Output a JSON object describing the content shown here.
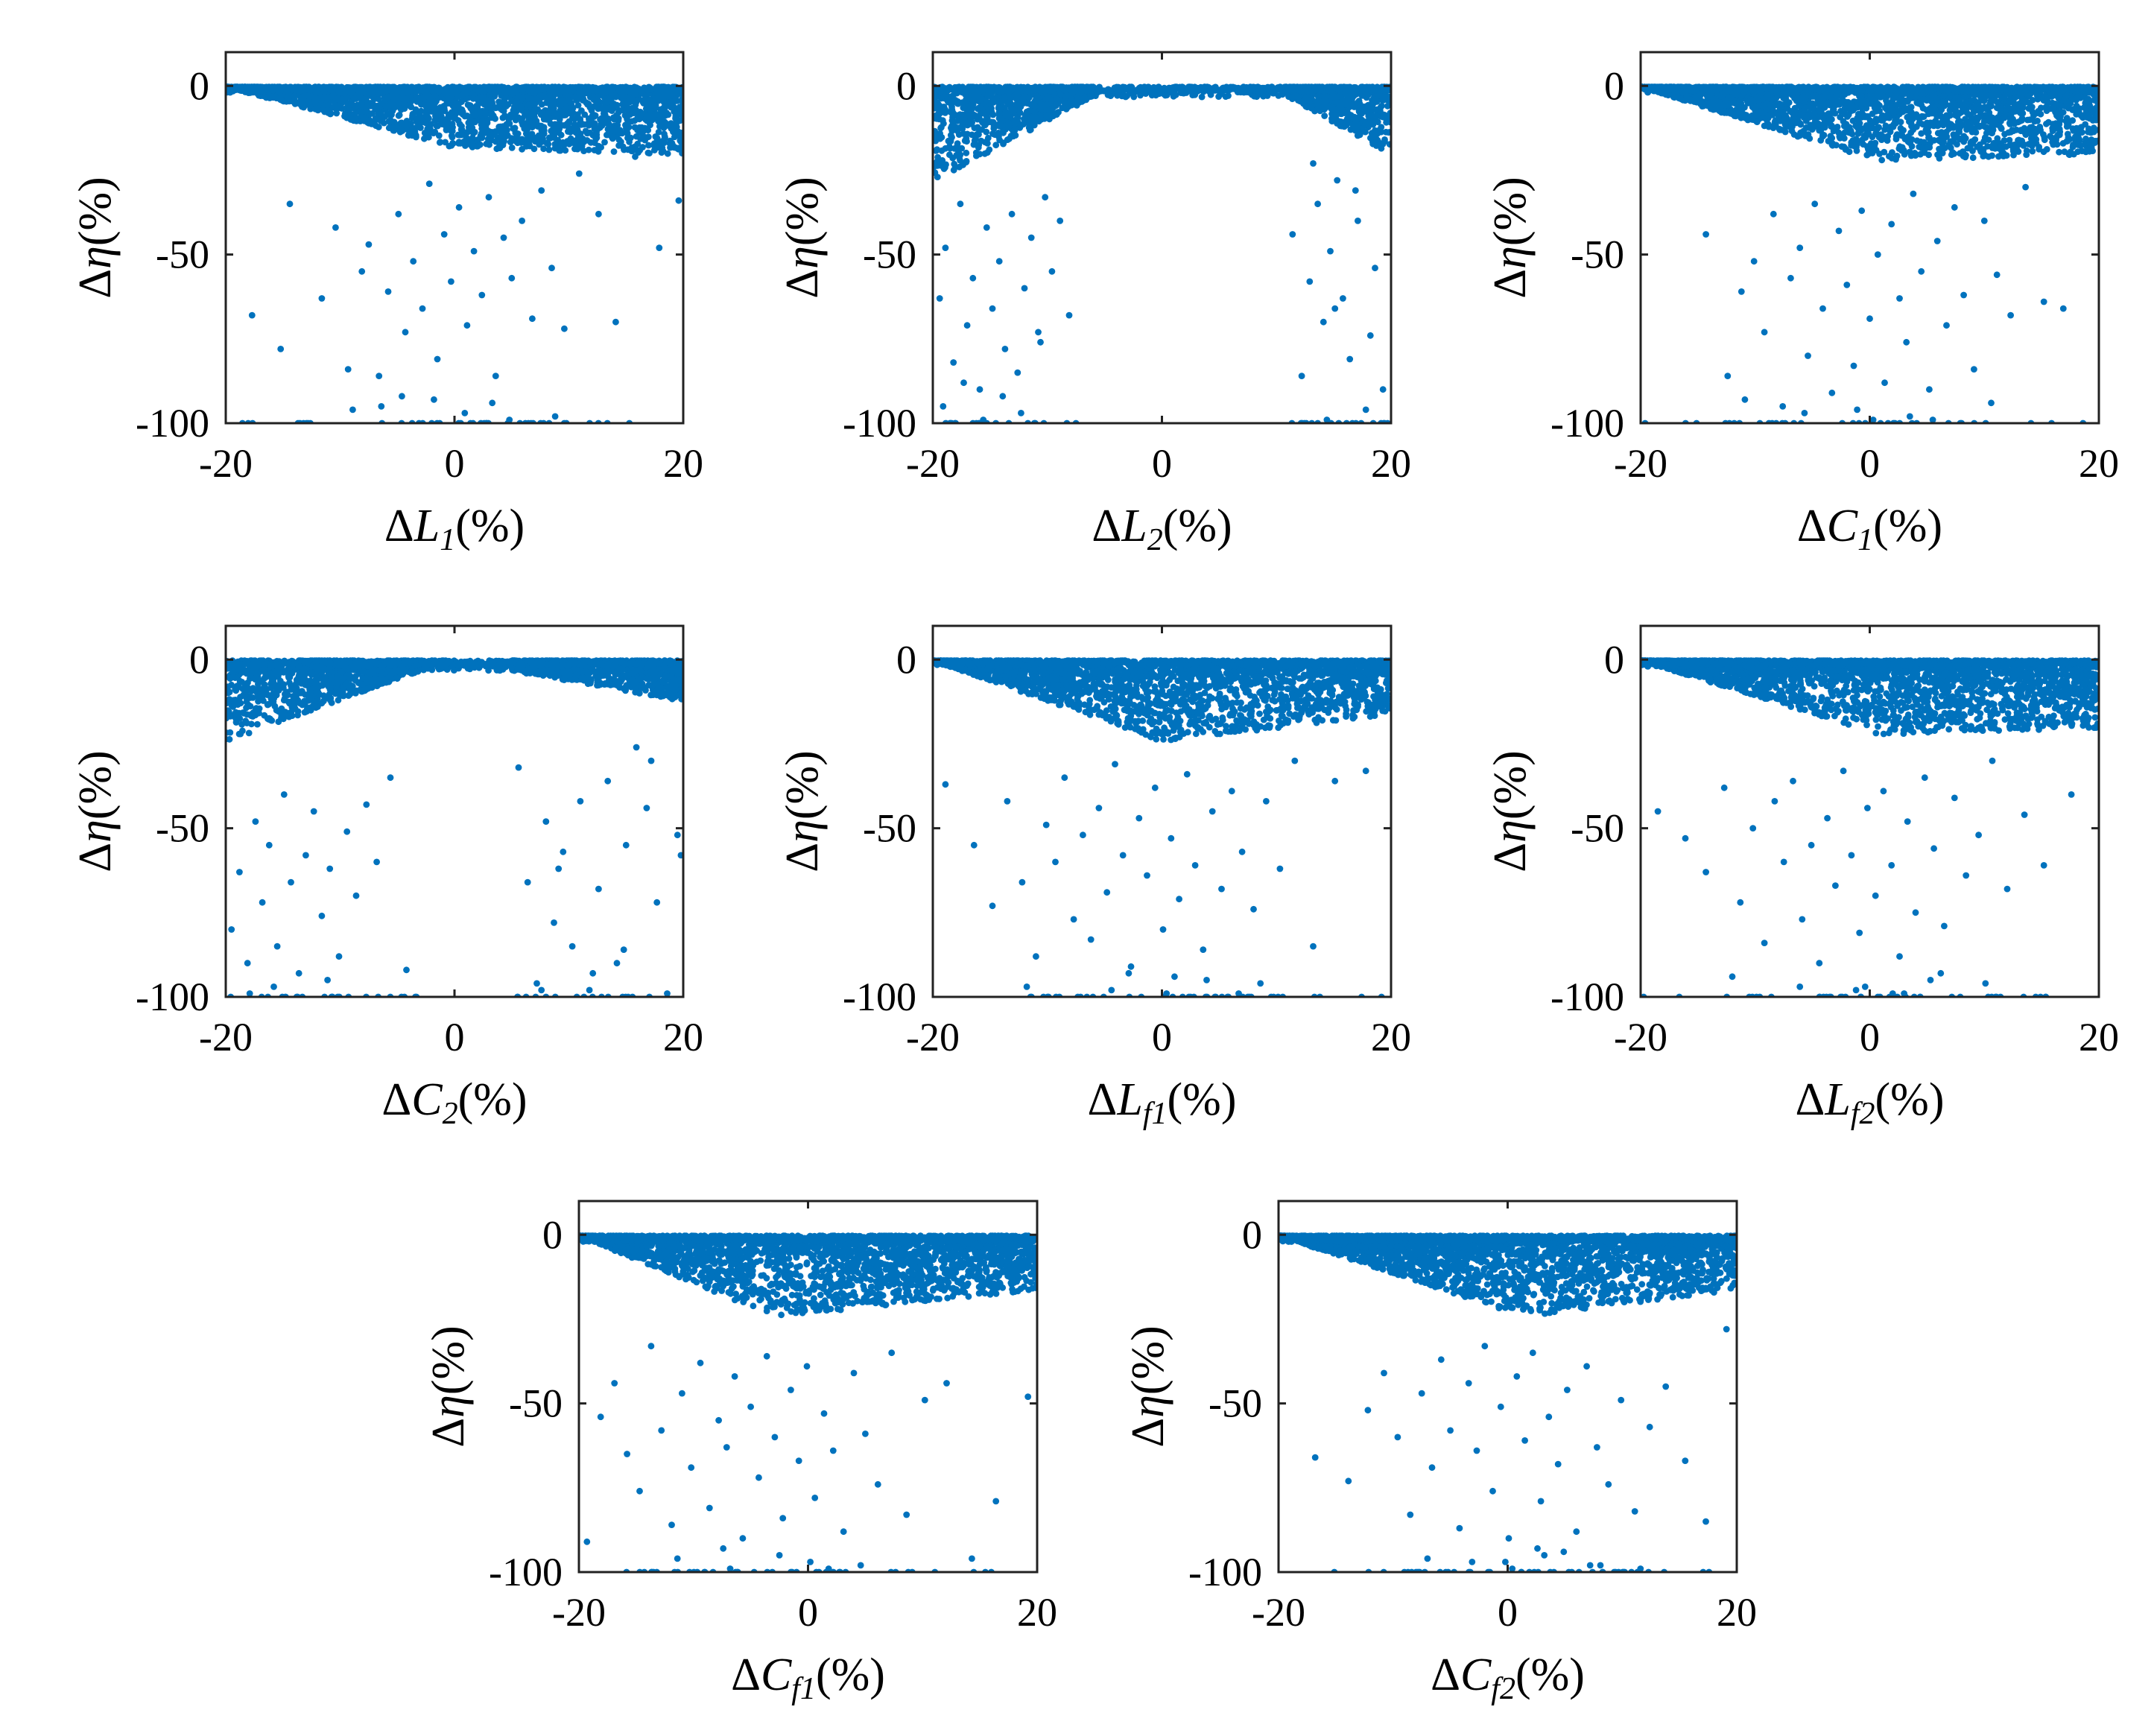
{
  "chart_data": [
    {
      "type": "scatter",
      "xlabel": {
        "delta": "Δ",
        "symbol": "L",
        "sub": "1",
        "unit": "(%)"
      },
      "ylabel": {
        "delta": "Δ",
        "symbol": "η",
        "unit": "(%)"
      },
      "xlim": [
        -20,
        20
      ],
      "ylim": [
        -100,
        10
      ],
      "xticks": [
        -20,
        0,
        20
      ],
      "yticks": [
        -100,
        -50,
        0
      ],
      "xtick_labels": [
        "-20",
        "0",
        "20"
      ],
      "ytick_labels": [
        "-100",
        "-50",
        "0"
      ],
      "marker_color": "#0072BD",
      "band": {
        "seed": 11,
        "n": 2600,
        "kind": "v_center",
        "shape": [
          0,
          18,
          20
        ],
        "skew": 0
      },
      "x": [
        -17.7,
        -15.2,
        -14.4,
        -11.6,
        -10.4,
        -9.3,
        -8.1,
        -7.5,
        -6.6,
        -5.8,
        -4.9,
        -4.3,
        -3.6,
        -2.8,
        -2.2,
        -1.5,
        -0.9,
        -0.3,
        0.4,
        1.1,
        1.7,
        2.4,
        3.0,
        3.6,
        4.3,
        5.0,
        5.9,
        6.8,
        7.6,
        8.5,
        9.6,
        10.9,
        12.6,
        14.1,
        15.8,
        17.9,
        19.6,
        -12.8,
        -3.1,
        2.6,
        6.2,
        -6.4,
        0.9,
        4.8,
        -1.8,
        3.3,
        -8.9,
        8.8,
        -4.6,
        1.4
      ],
      "y": [
        -68,
        -78,
        -35,
        -63,
        -42,
        -84,
        -55,
        -47,
        -86,
        -61,
        -38,
        -73,
        -52,
        -66,
        -29,
        -81,
        -44,
        -58,
        -36,
        -71,
        -49,
        -62,
        -33,
        -86,
        -45,
        -57,
        -40,
        -69,
        -31,
        -54,
        -72,
        -26,
        -38,
        -70,
        -21,
        -48,
        -34,
        -100,
        -100,
        -100,
        -100,
        -95,
        -97,
        -99,
        -93,
        -94,
        -96,
        -98,
        -92,
        -100
      ]
    },
    {
      "type": "scatter",
      "xlabel": {
        "delta": "Δ",
        "symbol": "L",
        "sub": "2",
        "unit": "(%)"
      },
      "ylabel": {
        "delta": "Δ",
        "symbol": "η",
        "unit": "(%)"
      },
      "xlim": [
        -20,
        20
      ],
      "ylim": [
        -100,
        10
      ],
      "xticks": [
        -20,
        0,
        20
      ],
      "yticks": [
        -100,
        -50,
        0
      ],
      "xtick_labels": [
        "-20",
        "0",
        "20"
      ],
      "ytick_labels": [
        "-100",
        "-50",
        "0"
      ],
      "marker_color": "#0072BD",
      "band": {
        "seed": 23,
        "n": 2600,
        "kind": "gap",
        "shape": [
          0,
          28,
          20
        ],
        "gap": [
          -6,
          11
        ]
      },
      "x": [
        -19.4,
        -18.9,
        -18.2,
        -17.6,
        -17.0,
        -16.5,
        -15.9,
        -15.3,
        -14.8,
        -14.2,
        -13.7,
        -13.1,
        -12.6,
        -12.0,
        -11.4,
        -10.8,
        -10.2,
        -9.6,
        -8.9,
        -8.1,
        -19.1,
        -17.3,
        -15.6,
        -13.9,
        -12.3,
        -10.6,
        -18.5,
        -16.2,
        -14.5,
        -11.7,
        11.4,
        12.2,
        12.9,
        13.6,
        14.1,
        14.7,
        15.3,
        15.8,
        16.4,
        17.1,
        17.8,
        18.6,
        19.3,
        13.2,
        15.1,
        16.9,
        18.2,
        14.4,
        12.6,
        19.7
      ],
      "y": [
        -63,
        -48,
        -82,
        -35,
        -71,
        -57,
        -90,
        -42,
        -66,
        -52,
        -78,
        -38,
        -85,
        -60,
        -45,
        -73,
        -33,
        -55,
        -40,
        -68,
        -95,
        -88,
        -99,
        -92,
        -97,
        -76,
        -100,
        -100,
        -100,
        -100,
        -44,
        -86,
        -58,
        -35,
        -70,
        -49,
        -28,
        -63,
        -81,
        -40,
        -96,
        -54,
        -90,
        -23,
        -66,
        -31,
        -74,
        -99,
        -100,
        -100
      ]
    },
    {
      "type": "scatter",
      "xlabel": {
        "delta": "Δ",
        "symbol": "C",
        "sub": "1",
        "unit": "(%)"
      },
      "ylabel": {
        "delta": "Δ",
        "symbol": "η",
        "unit": "(%)"
      },
      "xlim": [
        -20,
        20
      ],
      "ylim": [
        -100,
        10
      ],
      "xticks": [
        -20,
        0,
        20
      ],
      "yticks": [
        -100,
        -50,
        0
      ],
      "xtick_labels": [
        "-20",
        "0",
        "20"
      ],
      "ytick_labels": [
        "-100",
        "-50",
        "0"
      ],
      "marker_color": "#0072BD",
      "band": {
        "seed": 37,
        "n": 2600,
        "kind": "v_center",
        "shape": [
          0,
          22,
          20
        ],
        "skew": 0.5
      },
      "x": [
        -14.3,
        -12.4,
        -11.2,
        -10.1,
        -9.2,
        -8.4,
        -7.6,
        -6.9,
        -6.1,
        -5.4,
        -4.8,
        -4.1,
        -3.3,
        -2.7,
        -2.0,
        -1.4,
        -0.7,
        0.0,
        0.7,
        1.3,
        1.9,
        2.6,
        3.2,
        3.8,
        4.5,
        5.2,
        5.9,
        6.7,
        7.4,
        8.2,
        9.1,
        10.0,
        11.1,
        12.3,
        13.6,
        15.2,
        16.9,
        -8.8,
        -2.4,
        1.6,
        4.1,
        7.9,
        -5.7,
        0.3,
        3.5,
        -10.9,
        10.6,
        -1.1,
        5.5,
        2.2
      ],
      "y": [
        -44,
        -86,
        -61,
        -52,
        -73,
        -38,
        -95,
        -57,
        -48,
        -80,
        -35,
        -66,
        -91,
        -43,
        -59,
        -83,
        -37,
        -69,
        -50,
        -88,
        -41,
        -63,
        -76,
        -32,
        -55,
        -90,
        -46,
        -71,
        -36,
        -62,
        -84,
        -40,
        -56,
        -68,
        -30,
        -64,
        -66,
        -100,
        -100,
        -100,
        -100,
        -100,
        -97,
        -99,
        -98,
        -93,
        -94,
        -96,
        -99,
        -100
      ]
    },
    {
      "type": "scatter",
      "xlabel": {
        "delta": "Δ",
        "symbol": "C",
        "sub": "2",
        "unit": "(%)"
      },
      "ylabel": {
        "delta": "Δ",
        "symbol": "η",
        "unit": "(%)"
      },
      "xlim": [
        -20,
        20
      ],
      "ylim": [
        -100,
        10
      ],
      "xticks": [
        -20,
        0,
        20
      ],
      "yticks": [
        -100,
        -50,
        0
      ],
      "xtick_labels": [
        "-20",
        "0",
        "20"
      ],
      "ytick_labels": [
        "-100",
        "-50",
        "0"
      ],
      "marker_color": "#0072BD",
      "band": {
        "seed": 51,
        "n": 2600,
        "kind": "gap",
        "shape": [
          0,
          24,
          12
        ],
        "gap": [
          -3,
          5
        ]
      },
      "x": [
        -19.5,
        -18.8,
        -18.1,
        -17.4,
        -16.8,
        -16.2,
        -15.5,
        -14.9,
        -14.3,
        -13.6,
        -13.0,
        -12.3,
        -11.6,
        -10.9,
        -10.1,
        -9.4,
        -8.6,
        -7.7,
        -6.8,
        -5.6,
        -4.2,
        -17.9,
        -15.8,
        -13.3,
        -11.1,
        5.6,
        6.4,
        7.2,
        8.0,
        8.7,
        9.5,
        10.3,
        11.0,
        11.8,
        12.6,
        13.4,
        14.2,
        15.0,
        15.9,
        16.8,
        17.7,
        18.6,
        19.5,
        7.6,
        10.7,
        14.8,
        19.8,
        9.1,
        12.1,
        17.2
      ],
      "y": [
        -80,
        -63,
        -90,
        -48,
        -72,
        -55,
        -85,
        -40,
        -66,
        -93,
        -58,
        -45,
        -76,
        -62,
        -88,
        -51,
        -70,
        -43,
        -60,
        -35,
        -92,
        -99,
        -97,
        -100,
        -95,
        -32,
        -66,
        -96,
        -48,
        -78,
        -57,
        -85,
        -42,
        -98,
        -68,
        -36,
        -90,
        -55,
        -26,
        -44,
        -72,
        -99,
        -52,
        -98,
        -100,
        -86,
        -58,
        -62,
        -93,
        -30
      ]
    },
    {
      "type": "scatter",
      "xlabel": {
        "delta": "Δ",
        "symbol": "L",
        "sub": "f1",
        "unit": "(%)"
      },
      "ylabel": {
        "delta": "Δ",
        "symbol": "η",
        "unit": "(%)"
      },
      "xlim": [
        -20,
        20
      ],
      "ylim": [
        -100,
        10
      ],
      "xticks": [
        -20,
        0,
        20
      ],
      "yticks": [
        -100,
        -50,
        0
      ],
      "xtick_labels": [
        "-20",
        "0",
        "20"
      ],
      "ytick_labels": [
        "-100",
        "-50",
        "0"
      ],
      "marker_color": "#0072BD",
      "band": {
        "seed": 67,
        "n": 2600,
        "kind": "v_center",
        "shape": [
          0,
          24,
          16
        ],
        "skew": 0
      },
      "x": [
        -18.9,
        -16.4,
        -14.8,
        -13.5,
        -12.2,
        -11.0,
        -10.1,
        -9.3,
        -8.5,
        -7.7,
        -6.9,
        -6.2,
        -5.5,
        -4.8,
        -4.1,
        -3.4,
        -2.7,
        -2.0,
        -1.3,
        -0.6,
        0.1,
        0.8,
        1.5,
        2.2,
        2.9,
        3.6,
        4.4,
        5.2,
        6.1,
        7.0,
        8.0,
        9.1,
        10.3,
        11.6,
        13.2,
        15.1,
        17.8,
        -7.1,
        -1.8,
        2.5,
        5.8,
        -11.8,
        0.4,
        3.9,
        -4.4,
        8.6,
        -9.9,
        1.1,
        6.7,
        -2.9
      ],
      "y": [
        -37,
        -55,
        -73,
        -42,
        -66,
        -88,
        -49,
        -60,
        -35,
        -77,
        -52,
        -83,
        -44,
        -69,
        -31,
        -58,
        -91,
        -47,
        -64,
        -38,
        -80,
        -53,
        -71,
        -34,
        -61,
        -86,
        -45,
        -68,
        -39,
        -57,
        -74,
        -42,
        -62,
        -30,
        -85,
        -36,
        -33,
        -100,
        -100,
        -100,
        -100,
        -97,
        -99,
        -95,
        -98,
        -96,
        -100,
        -94,
        -99,
        -93
      ]
    },
    {
      "type": "scatter",
      "xlabel": {
        "delta": "Δ",
        "symbol": "L",
        "sub": "f2",
        "unit": "(%)"
      },
      "ylabel": {
        "delta": "Δ",
        "symbol": "η",
        "unit": "(%)"
      },
      "xlim": [
        -20,
        20
      ],
      "ylim": [
        -100,
        10
      ],
      "xticks": [
        -20,
        0,
        20
      ],
      "yticks": [
        -100,
        -50,
        0
      ],
      "xtick_labels": [
        "-20",
        "0",
        "20"
      ],
      "ytick_labels": [
        "-100",
        "-50",
        "0"
      ],
      "marker_color": "#0072BD",
      "band": {
        "seed": 79,
        "n": 2600,
        "kind": "v_center",
        "shape": [
          0,
          22,
          20
        ],
        "skew": 1
      },
      "x": [
        -18.5,
        -16.1,
        -14.3,
        -12.7,
        -11.3,
        -10.2,
        -9.2,
        -8.3,
        -7.5,
        -6.7,
        -5.9,
        -5.1,
        -4.4,
        -3.7,
        -3.0,
        -2.3,
        -1.6,
        -0.9,
        -0.2,
        0.5,
        1.2,
        1.9,
        2.6,
        3.3,
        4.0,
        4.8,
        5.6,
        6.5,
        7.4,
        8.4,
        9.5,
        10.7,
        12.0,
        13.5,
        15.2,
        17.6,
        -9.6,
        -3.5,
        0.9,
        4.4,
        7.9,
        -6.1,
        2.0,
        5.3,
        -1.2,
        10.1,
        -12.0,
        3.0,
        6.2,
        -0.4
      ],
      "y": [
        -45,
        -53,
        -63,
        -38,
        -72,
        -50,
        -84,
        -42,
        -60,
        -36,
        -77,
        -55,
        -90,
        -47,
        -67,
        -33,
        -58,
        -81,
        -44,
        -70,
        -39,
        -61,
        -88,
        -48,
        -75,
        -35,
        -56,
        -79,
        -41,
        -64,
        -52,
        -30,
        -68,
        -46,
        -61,
        -40,
        -100,
        -100,
        -100,
        -100,
        -100,
        -97,
        -99,
        -95,
        -98,
        -96,
        -94,
        -99,
        -93,
        -97
      ]
    },
    {
      "type": "scatter",
      "xlabel": {
        "delta": "Δ",
        "symbol": "C",
        "sub": "f1",
        "unit": "(%)"
      },
      "ylabel": {
        "delta": "Δ",
        "symbol": "η",
        "unit": "(%)"
      },
      "xlim": [
        -20,
        20
      ],
      "ylim": [
        -100,
        10
      ],
      "xticks": [
        -20,
        0,
        20
      ],
      "yticks": [
        -100,
        -50,
        0
      ],
      "xtick_labels": [
        "-20",
        "0",
        "20"
      ],
      "ytick_labels": [
        "-100",
        "-50",
        "0"
      ],
      "marker_color": "#0072BD",
      "band": {
        "seed": 97,
        "n": 2600,
        "kind": "v_center",
        "shape": [
          0,
          24,
          16
        ],
        "skew": -3
      },
      "x": [
        -19.3,
        -18.1,
        -16.9,
        -15.8,
        -14.7,
        -13.7,
        -12.8,
        -11.9,
        -11.0,
        -10.2,
        -9.4,
        -8.6,
        -7.8,
        -7.1,
        -6.4,
        -5.7,
        -5.0,
        -4.3,
        -3.6,
        -2.9,
        -2.2,
        -1.5,
        -0.8,
        -0.1,
        0.6,
        1.4,
        2.2,
        3.1,
        4.0,
        5.0,
        6.1,
        7.3,
        8.6,
        10.2,
        12.1,
        14.3,
        16.4,
        19.2,
        -9.0,
        -4.7,
        -1.0,
        2.8,
        -13.2,
        -6.8,
        0.2,
        4.6,
        -2.5,
        -11.4,
        1.8,
        -7.4
      ],
      "y": [
        -91,
        -54,
        -44,
        -65,
        -76,
        -33,
        -58,
        -86,
        -47,
        -69,
        -38,
        -81,
        -55,
        -63,
        -42,
        -90,
        -51,
        -72,
        -36,
        -60,
        -84,
        -46,
        -67,
        -39,
        -78,
        -53,
        -64,
        -88,
        -41,
        -59,
        -74,
        -35,
        -83,
        -49,
        -44,
        -96,
        -79,
        -48,
        -100,
        -100,
        -100,
        -100,
        -100,
        -99,
        -97,
        -98,
        -95,
        -96,
        -99,
        -93
      ]
    },
    {
      "type": "scatter",
      "xlabel": {
        "delta": "Δ",
        "symbol": "C",
        "sub": "f2",
        "unit": "(%)"
      },
      "ylabel": {
        "delta": "Δ",
        "symbol": "η",
        "unit": "(%)"
      },
      "xlim": [
        -20,
        20
      ],
      "ylim": [
        -100,
        10
      ],
      "xticks": [
        -20,
        0,
        20
      ],
      "yticks": [
        -100,
        -50,
        0
      ],
      "xtick_labels": [
        "-20",
        "0",
        "20"
      ],
      "ytick_labels": [
        "-100",
        "-50",
        "0"
      ],
      "marker_color": "#0072BD",
      "band": {
        "seed": 113,
        "n": 2600,
        "kind": "v_center",
        "shape": [
          0,
          24,
          16
        ],
        "skew": 1.5
      },
      "x": [
        -16.8,
        -13.9,
        -12.2,
        -10.8,
        -9.6,
        -8.5,
        -7.5,
        -6.6,
        -5.8,
        -5.0,
        -4.2,
        -3.4,
        -2.7,
        -2.0,
        -1.3,
        -0.6,
        0.1,
        0.8,
        1.5,
        2.2,
        2.9,
        3.6,
        4.4,
        5.2,
        6.0,
        6.9,
        7.8,
        8.8,
        9.9,
        11.1,
        12.4,
        13.8,
        15.5,
        17.3,
        19.1,
        -5.4,
        -1.7,
        1.9,
        5.6,
        9.3,
        -3.1,
        0.4,
        3.2,
        7.2,
        -7.0,
        11.6,
        2.6,
        -0.2,
        4.9,
        8.1
      ],
      "y": [
        -66,
        -73,
        -52,
        -41,
        -60,
        -83,
        -47,
        -69,
        -37,
        -58,
        -87,
        -44,
        -64,
        -33,
        -76,
        -51,
        -90,
        -42,
        -61,
        -35,
        -79,
        -54,
        -68,
        -46,
        -88,
        -39,
        -63,
        -74,
        -49,
        -82,
        -57,
        -45,
        -67,
        -85,
        -28,
        -100,
        -100,
        -100,
        -100,
        -100,
        -97,
        -99,
        -95,
        -98,
        -96,
        -99,
        -93,
        -97,
        -94,
        -98
      ]
    }
  ]
}
